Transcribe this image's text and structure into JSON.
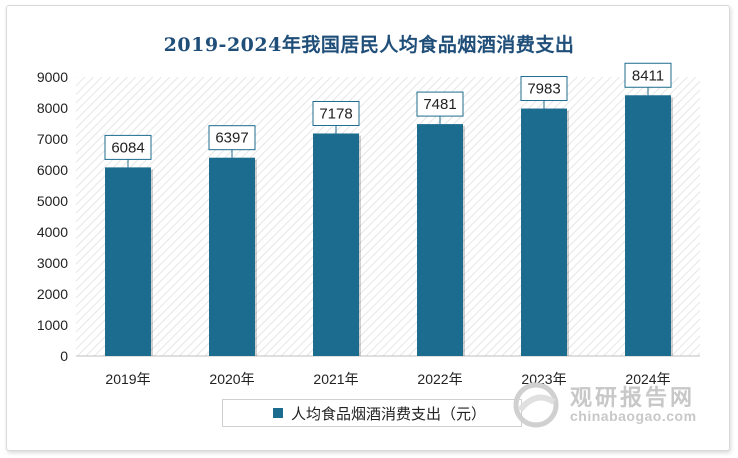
{
  "chart_data": {
    "type": "bar",
    "title": "2019-2024年我国居民人均食品烟酒消费支出",
    "categories": [
      "2019年",
      "2020年",
      "2021年",
      "2022年",
      "2023年",
      "2024年"
    ],
    "series": [
      {
        "name": "人均食品烟酒消费支出（元）",
        "values": [
          6084,
          6397,
          7178,
          7481,
          7983,
          8411
        ]
      }
    ],
    "ylim": [
      0,
      9000
    ],
    "yticks": [
      0,
      1000,
      2000,
      3000,
      4000,
      5000,
      6000,
      7000,
      8000,
      9000
    ],
    "xlabel": "",
    "ylabel": "",
    "grid": false,
    "legend_position": "bottom",
    "colors": {
      "bar": "#1c6c8f",
      "title": "#1f4e79"
    }
  },
  "watermark": {
    "cn": "观研报告网",
    "en": "chinabaogao.com"
  }
}
